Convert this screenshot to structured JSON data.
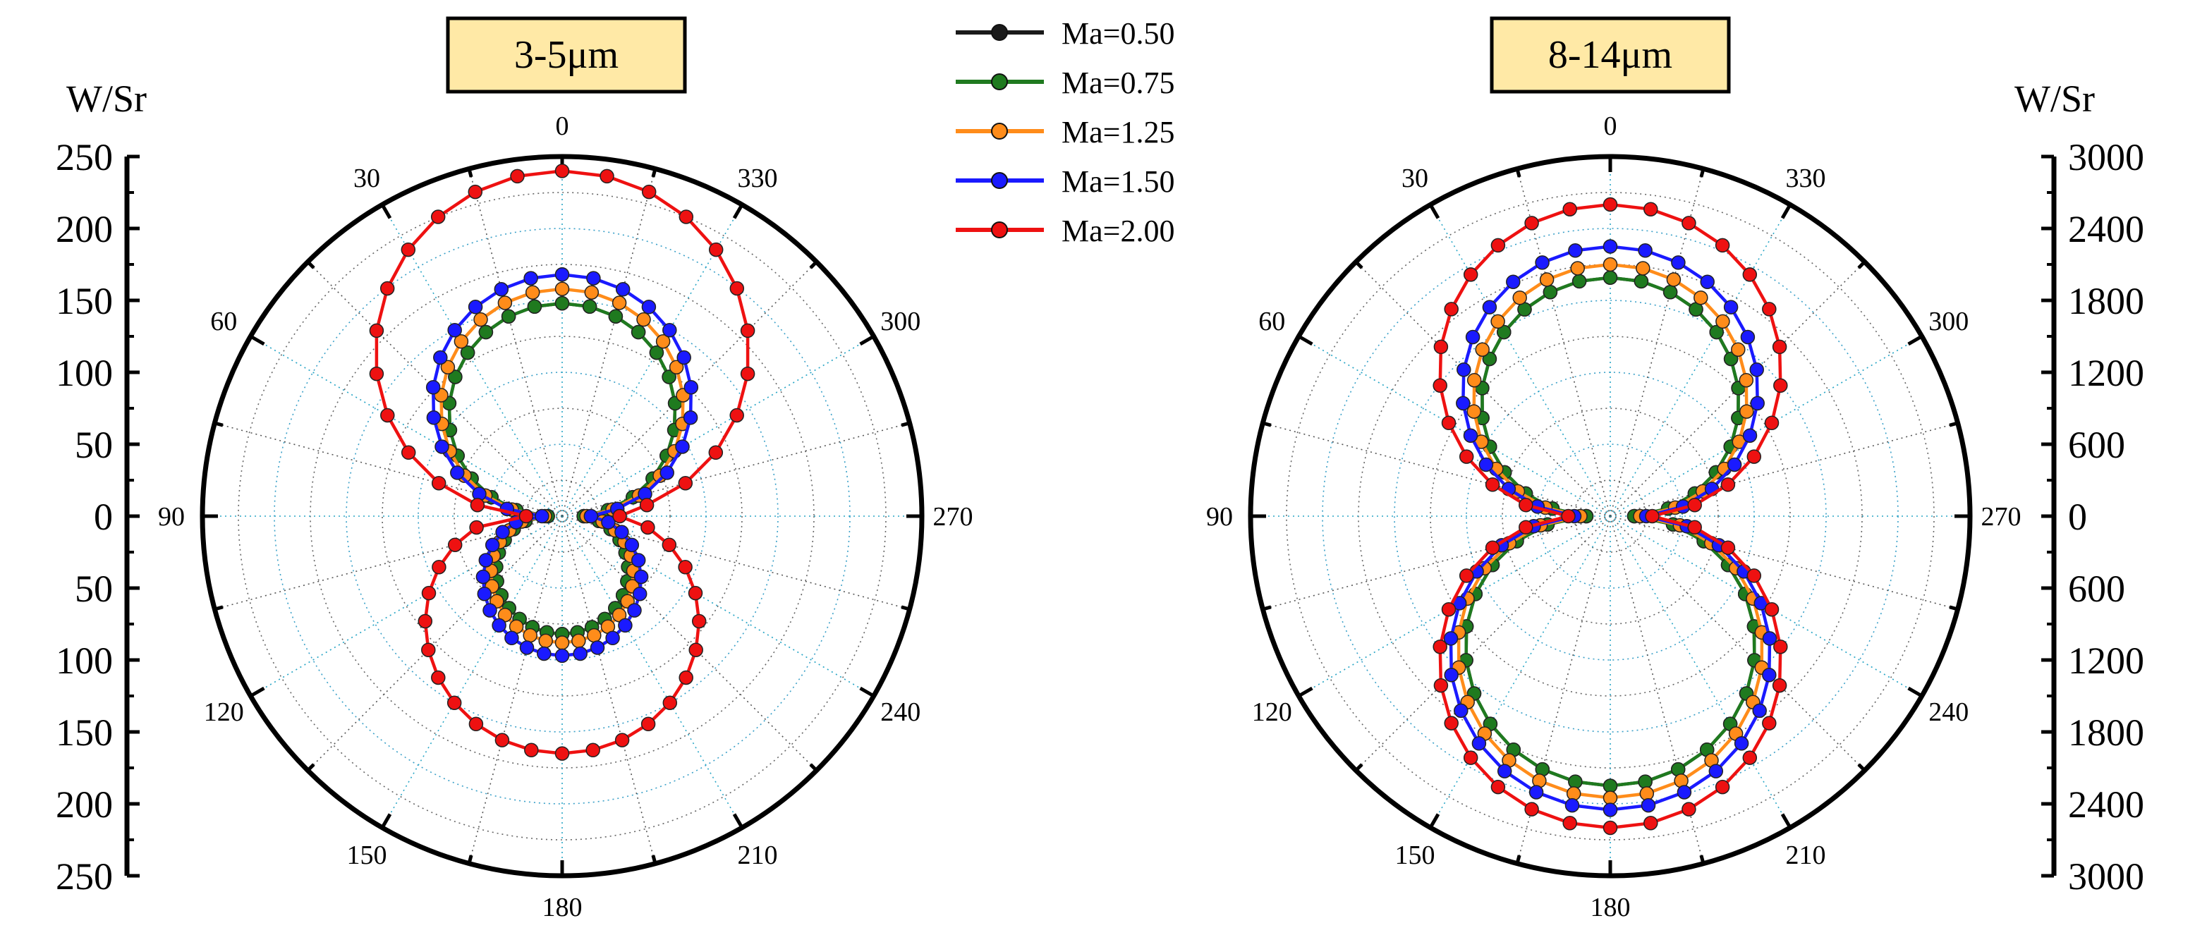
{
  "legend": [
    "Ma=0.50",
    "Ma=0.75",
    "Ma=1.25",
    "Ma=1.50",
    "Ma=2.00"
  ],
  "chart_data": [
    {
      "type": "polar-line",
      "title": "3-5μm",
      "unit": "W/Sr",
      "r_max": 250,
      "axis_ticks": [
        "250",
        "200",
        "150",
        "100",
        "50",
        "0",
        "50",
        "100",
        "150",
        "200",
        "250"
      ],
      "angle_labels": [
        "0",
        "30",
        "60",
        "90",
        "120",
        "150",
        "180",
        "210",
        "240",
        "270",
        "300",
        "330"
      ],
      "angle_step_deg": 7.5,
      "series": [
        {
          "name": "Ma=0.50",
          "color": "#1a1a1a",
          "lobe_front": 148,
          "lobe_rear": 82,
          "null_front": 10,
          "null_rear": 15
        },
        {
          "name": "Ma=0.75",
          "color": "#1f7a1f",
          "lobe_front": 148,
          "lobe_rear": 82,
          "null_front": 10,
          "null_rear": 15
        },
        {
          "name": "Ma=1.25",
          "color": "#ff8c1a",
          "lobe_front": 158,
          "lobe_rear": 88,
          "null_front": 12,
          "null_rear": 17
        },
        {
          "name": "Ma=1.50",
          "color": "#1a1aff",
          "lobe_front": 168,
          "lobe_rear": 97,
          "null_front": 14,
          "null_rear": 20
        },
        {
          "name": "Ma=2.00",
          "color": "#ee1111",
          "lobe_front": 240,
          "lobe_rear": 165,
          "null_front": 25,
          "null_rear": 40
        }
      ]
    },
    {
      "type": "polar-line",
      "title": "8-14μm",
      "unit": "W/Sr",
      "r_max": 3000,
      "axis_ticks": [
        "3000",
        "2400",
        "1800",
        "1200",
        "600",
        "0",
        "600",
        "1200",
        "1800",
        "2400",
        "3000"
      ],
      "angle_labels": [
        "0",
        "30",
        "60",
        "90",
        "120",
        "150",
        "180",
        "210",
        "240",
        "270",
        "300",
        "330"
      ],
      "angle_step_deg": 7.5,
      "series": [
        {
          "name": "Ma=0.50",
          "color": "#1a1a1a",
          "lobe_front": 1990,
          "lobe_rear": 2250,
          "null_front": 200,
          "null_rear": 200
        },
        {
          "name": "Ma=0.75",
          "color": "#1f7a1f",
          "lobe_front": 1990,
          "lobe_rear": 2250,
          "null_front": 200,
          "null_rear": 200
        },
        {
          "name": "Ma=1.25",
          "color": "#ff8c1a",
          "lobe_front": 2100,
          "lobe_rear": 2350,
          "null_front": 250,
          "null_rear": 250
        },
        {
          "name": "Ma=1.50",
          "color": "#1a1aff",
          "lobe_front": 2250,
          "lobe_rear": 2450,
          "null_front": 300,
          "null_rear": 300
        },
        {
          "name": "Ma=2.00",
          "color": "#ee1111",
          "lobe_front": 2600,
          "lobe_rear": 2600,
          "null_front": 350,
          "null_rear": 350
        }
      ]
    }
  ]
}
